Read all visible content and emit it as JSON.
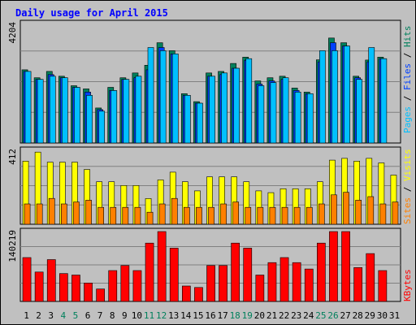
{
  "chart_data": {
    "type": "bar",
    "title": "Daily usage for April 2015",
    "colors": {
      "background": "#c0c0c0",
      "plot": "#c0c0c0",
      "title": "#0000ff",
      "hits": "#00805c",
      "files": "#0040ff",
      "pages": "#00c0ff",
      "visits": "#ffff00",
      "sites": "#ff8000",
      "kbytes": "#ff0000",
      "weekend_day": "#00805c",
      "weekday": "#000000"
    },
    "days": [
      "1",
      "2",
      "3",
      "4",
      "5",
      "6",
      "7",
      "8",
      "9",
      "10",
      "11",
      "12",
      "13",
      "14",
      "15",
      "16",
      "17",
      "18",
      "19",
      "20",
      "21",
      "22",
      "23",
      "24",
      "25",
      "26",
      "27",
      "28",
      "29",
      "30",
      "31"
    ],
    "weekend_days": [
      "4",
      "5",
      "11",
      "12",
      "18",
      "19",
      "25",
      "26"
    ],
    "panels": [
      {
        "name": "hits-files-pages",
        "y_max_label": "4204",
        "ylim": [
          0,
          4204
        ],
        "series": [
          {
            "name": "Hits",
            "color": "#00805c",
            "values": [
              2576,
              2296,
              2520,
              2352,
              2016,
              1904,
              1232,
              1960,
              2296,
              2464,
              2736,
              3528,
              3248,
              1736,
              1456,
              2464,
              2520,
              2800,
              3024,
              2184,
              2296,
              2352,
              1932,
              1792,
              2928,
              3696,
              3528,
              2352,
              2920,
              3024,
              0
            ],
            "labeled": "Hits"
          },
          {
            "name": "Files",
            "color": "#0040ff",
            "values": [
              2520,
              2240,
              2408,
              2296,
              1960,
              1792,
              1176,
              1848,
              2240,
              2296,
              2576,
              3360,
              3136,
              1680,
              1400,
              2352,
              2408,
              2632,
              2912,
              2072,
              2184,
              2240,
              1848,
              1736,
              2856,
              3528,
              3416,
              2296,
              2856,
              2968,
              0
            ],
            "labeled": "Files"
          },
          {
            "name": "Pages",
            "color": "#00c0ff",
            "values": [
              2520,
              2240,
              2352,
              2296,
              1960,
              1680,
              1120,
              1848,
              2240,
              2352,
              3360,
              3248,
              3136,
              1680,
              1400,
              2352,
              2464,
              2632,
              2968,
              2016,
              2128,
              2296,
              1792,
              1736,
              3248,
              3248,
              3416,
              2240,
              3360,
              2968,
              0
            ],
            "labeled": "Pages"
          }
        ]
      },
      {
        "name": "visits-sites",
        "y_max_label": "412",
        "ylim": [
          0,
          412
        ],
        "series": [
          {
            "name": "Visits",
            "color": "#ffff00",
            "values": [
              352,
              402,
              346,
              346,
              346,
              305,
              237,
              237,
              216,
              216,
              143,
              247,
              290,
              237,
              186,
              264,
              264,
              264,
              237,
              186,
              176,
              198,
              198,
              198,
              237,
              357,
              367,
              352,
              367,
              342,
              274
            ],
            "labeled": "Visits"
          },
          {
            "name": "Sites",
            "color": "#ff8000",
            "values": [
              113,
              113,
              144,
              113,
              124,
              134,
              94,
              94,
              94,
              94,
              67,
              113,
              144,
              94,
              94,
              94,
              113,
              124,
              94,
              94,
              94,
              94,
              94,
              94,
              113,
              164,
              178,
              134,
              154,
              113,
              124
            ],
            "labeled": "Sites"
          }
        ]
      },
      {
        "name": "kbytes",
        "y_max_label": "140219",
        "ylim": [
          0,
          140219
        ],
        "series": [
          {
            "name": "KBytes",
            "color": "#ff0000",
            "values": [
              88000,
              59000,
              84000,
              56000,
              53000,
              37000,
              25000,
              62000,
              72000,
              62000,
              117000,
              140219,
              107000,
              31000,
              28000,
              72000,
              72000,
              117000,
              107000,
              53000,
              78000,
              88000,
              78000,
              65000,
              117000,
              140219,
              140219,
              68000,
              96000,
              62000,
              0
            ],
            "labeled": "KBytes"
          }
        ]
      }
    ],
    "side_labels": {
      "panel1": [
        "Pages",
        "Files",
        "Hits"
      ],
      "panel2": [
        "Sites",
        "Visits"
      ],
      "panel3": [
        "KBytes"
      ]
    }
  }
}
